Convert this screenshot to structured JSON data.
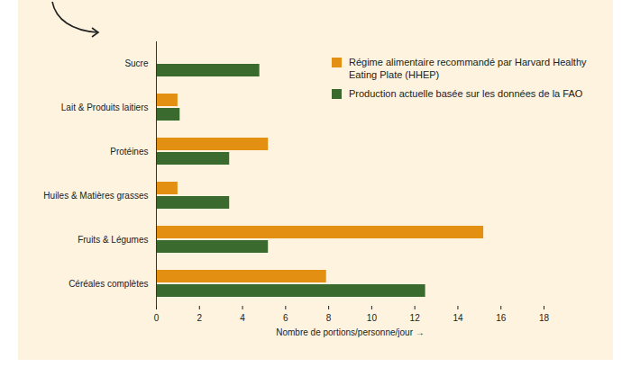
{
  "chart_data": {
    "type": "bar",
    "orientation": "horizontal",
    "categories": [
      "Sucre",
      "Lait & Produits laitiers",
      "Protéines",
      "Huiles & Matières grasses",
      "Fruits & Légumes",
      "Céréales complètes"
    ],
    "series": [
      {
        "name": "Régime alimentaire recommandé par Harvard Healthy Eating Plate (HHEP)",
        "color": "#e39012",
        "values": [
          0,
          1,
          5.2,
          1,
          15.2,
          7.9
        ]
      },
      {
        "name": "Production actuelle basée sur les données de la FAO",
        "color": "#3b6a2e",
        "values": [
          4.8,
          1.1,
          3.4,
          3.4,
          5.2,
          12.5
        ]
      }
    ],
    "xlabel": "Nombre de portions/personne/jour",
    "xlim": [
      0,
      18
    ],
    "xticks": [
      0,
      2,
      4,
      6,
      8,
      10,
      12,
      14,
      16,
      18
    ],
    "legend": "upper right",
    "grid": false
  }
}
